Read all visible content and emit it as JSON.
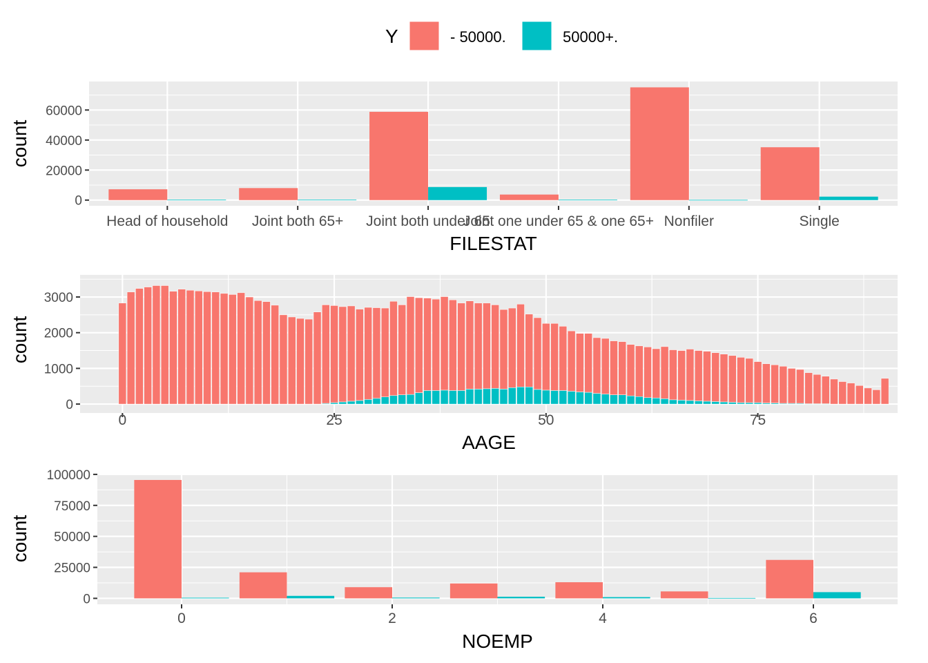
{
  "legend": {
    "title": "Y",
    "items": [
      {
        "label": "- 50000.",
        "color": "#F8766D"
      },
      {
        "label": "50000+.",
        "color": "#00BFC4"
      }
    ]
  },
  "chart_data": [
    {
      "type": "bar",
      "layout": "dodge",
      "xlabel": "FILESTAT",
      "ylabel": "count",
      "categories": [
        "Head of household",
        "Joint both 65+",
        "Joint both under 65",
        "Joint one under 65 & one 65+",
        "Nonfiler",
        "Single"
      ],
      "series": [
        {
          "name": "- 50000.",
          "color": "#F8766D",
          "values": [
            7200,
            8000,
            58800,
            3700,
            75100,
            35200
          ]
        },
        {
          "name": "50000+.",
          "color": "#00BFC4",
          "values": [
            250,
            350,
            8700,
            300,
            150,
            2300
          ]
        }
      ],
      "yticks": [
        0,
        20000,
        40000,
        60000
      ],
      "ylim": [
        -3800,
        79000
      ],
      "grid": true,
      "legend": "top"
    },
    {
      "type": "bar",
      "layout": "stack",
      "xlabel": "AAGE",
      "ylabel": "count",
      "x": [
        0,
        1,
        2,
        3,
        4,
        5,
        6,
        7,
        8,
        9,
        10,
        11,
        12,
        13,
        14,
        15,
        16,
        17,
        18,
        19,
        20,
        21,
        22,
        23,
        24,
        25,
        26,
        27,
        28,
        29,
        30,
        31,
        32,
        33,
        34,
        35,
        36,
        37,
        38,
        39,
        40,
        41,
        42,
        43,
        44,
        45,
        46,
        47,
        48,
        49,
        50,
        51,
        52,
        53,
        54,
        55,
        56,
        57,
        58,
        59,
        60,
        61,
        62,
        63,
        64,
        65,
        66,
        67,
        68,
        69,
        70,
        71,
        72,
        73,
        74,
        75,
        76,
        77,
        78,
        79,
        80,
        81,
        82,
        83,
        84,
        85,
        86,
        87,
        88,
        89,
        90
      ],
      "series": [
        {
          "name": "- 50000.",
          "color": "#F8766D",
          "values": [
            2830,
            3140,
            3240,
            3280,
            3320,
            3320,
            3160,
            3220,
            3190,
            3170,
            3150,
            3140,
            3100,
            3070,
            3120,
            3000,
            2900,
            2870,
            2770,
            2500,
            2440,
            2400,
            2380,
            2580,
            2760,
            2720,
            2670,
            2670,
            2560,
            2580,
            2540,
            2490,
            2640,
            2520,
            2740,
            2660,
            2590,
            2560,
            2620,
            2540,
            2450,
            2470,
            2410,
            2400,
            2340,
            2230,
            2230,
            2320,
            2040,
            2010,
            1870,
            1880,
            1800,
            1690,
            1640,
            1650,
            1560,
            1560,
            1510,
            1490,
            1440,
            1420,
            1420,
            1380,
            1460,
            1400,
            1390,
            1440,
            1410,
            1400,
            1370,
            1340,
            1310,
            1270,
            1240,
            1150,
            1100,
            1070,
            1040,
            980,
            950,
            870,
            820,
            770,
            700,
            630,
            590,
            520,
            450,
            400,
            720
          ]
        },
        {
          "name": "50000+.",
          "color": "#00BFC4",
          "values": [
            0,
            0,
            0,
            0,
            0,
            0,
            0,
            0,
            0,
            0,
            0,
            0,
            0,
            0,
            0,
            0,
            0,
            0,
            0,
            0,
            0,
            0,
            0,
            0,
            20,
            40,
            60,
            80,
            100,
            130,
            160,
            200,
            240,
            260,
            270,
            320,
            380,
            380,
            390,
            380,
            380,
            420,
            420,
            430,
            440,
            420,
            460,
            480,
            480,
            410,
            390,
            380,
            380,
            360,
            340,
            330,
            300,
            280,
            260,
            260,
            230,
            210,
            180,
            170,
            150,
            120,
            110,
            100,
            90,
            80,
            70,
            60,
            50,
            40,
            40,
            40,
            30,
            30,
            20,
            20,
            20,
            10,
            10,
            10,
            0,
            0,
            0,
            0,
            0,
            0,
            0
          ]
        }
      ],
      "xticks": [
        0,
        25,
        50,
        75
      ],
      "yticks": [
        0,
        1000,
        2000,
        3000
      ],
      "xlim": [
        -5,
        91.5
      ],
      "ylim": [
        -250,
        3620
      ],
      "grid": true
    },
    {
      "type": "bar",
      "layout": "dodge",
      "xlabel": "NOEMP",
      "ylabel": "count",
      "x": [
        0,
        1,
        2,
        3,
        4,
        5,
        6
      ],
      "series": [
        {
          "name": "- 50000.",
          "color": "#F8766D",
          "values": [
            95500,
            21000,
            9000,
            12000,
            13000,
            5600,
            31000
          ]
        },
        {
          "name": "50000+.",
          "color": "#00BFC4",
          "values": [
            500,
            2000,
            600,
            1300,
            1000,
            300,
            5000
          ]
        }
      ],
      "xticks": [
        0,
        2,
        4,
        6
      ],
      "yticks": [
        0,
        25000,
        50000,
        75000,
        100000
      ],
      "xlim": [
        -0.8,
        6.8
      ],
      "ylim": [
        -4800,
        100500
      ],
      "grid": true
    }
  ]
}
